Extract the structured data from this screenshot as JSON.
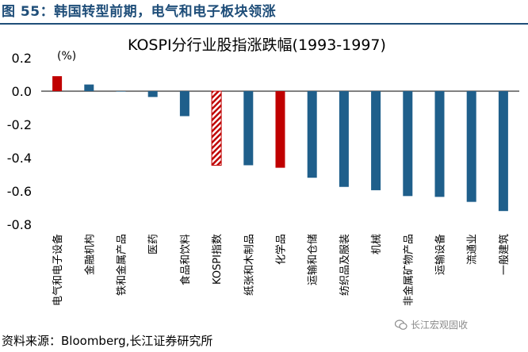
{
  "figure_title": "图 55：韩国转型前期，电气和电子板块领涨",
  "source_note": "资料来源：Bloomberg,长江证券研究所",
  "watermark": "长江宏观固收",
  "colors": {
    "blue": "#1f5f8b",
    "red": "#c00000",
    "title": "#1f4e79"
  },
  "chart_data": {
    "type": "bar",
    "title": "KOSPI分行业股指涨跌幅(1993-1997)",
    "ylabel": "(%)",
    "ylim": [
      -0.8,
      0.2
    ],
    "yticks": [
      "0.2",
      "0.0",
      "-0.2",
      "-0.4",
      "-0.6",
      "-0.8"
    ],
    "categories": [
      "电气和电子设备",
      "金融机构",
      "铁和金属产品",
      "医药",
      "食品和饮料",
      "KOSPI指数",
      "纸张和木制品",
      "化学品",
      "运输和仓储",
      "纺织品及服装",
      "机械",
      "非金属矿物产品",
      "运输设备",
      "流通业",
      "一般建筑"
    ],
    "values": [
      0.09,
      0.04,
      0.0,
      -0.035,
      -0.15,
      -0.445,
      -0.445,
      -0.46,
      -0.52,
      -0.575,
      -0.595,
      -0.63,
      -0.635,
      -0.665,
      -0.72
    ],
    "bar_styles": [
      "red",
      "blue",
      "blue",
      "blue",
      "blue",
      "hatched-red",
      "blue",
      "red",
      "blue",
      "blue",
      "blue",
      "blue",
      "blue",
      "blue",
      "blue"
    ]
  }
}
